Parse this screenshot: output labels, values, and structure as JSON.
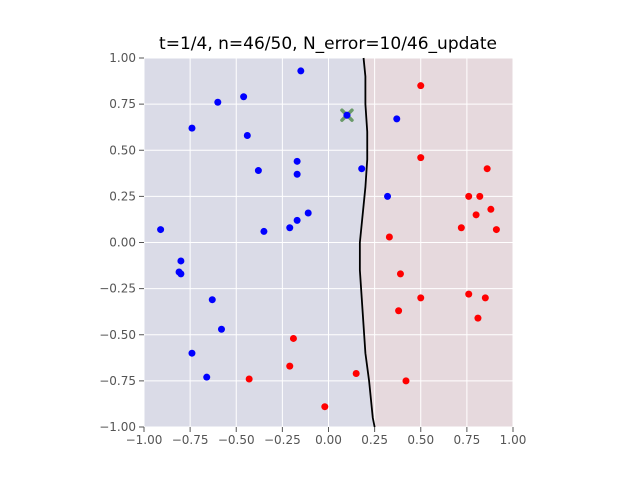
{
  "chart_data": {
    "type": "scatter",
    "title": "t=1/4, n=46/50, N_error=10/46_update",
    "xlabel": "",
    "ylabel": "",
    "xlim": [
      -1.0,
      1.0
    ],
    "ylim": [
      -1.0,
      1.0
    ],
    "xticks": [
      "−1.00",
      "−0.75",
      "−0.50",
      "−0.25",
      "0.00",
      "0.25",
      "0.50",
      "0.75",
      "1.00"
    ],
    "yticks": [
      "−1.00",
      "−0.75",
      "−0.50",
      "−0.25",
      "0.00",
      "0.25",
      "0.50",
      "0.75",
      "1.00"
    ],
    "grid": true,
    "legend": "none",
    "colors": {
      "blue_points": "#0000ff",
      "red_points": "#ff0000",
      "blue_region": "#dadbe7",
      "red_region": "#e6d9dd",
      "boundary": "#000000",
      "highlight_marker": "#6a9a6a",
      "grid": "#ffffff",
      "tick_text": "#555555"
    },
    "decision_regions": {
      "left_class": "blue",
      "right_class": "red"
    },
    "decision_boundary": [
      [
        0.19,
        1.0
      ],
      [
        0.2,
        0.9
      ],
      [
        0.2,
        0.75
      ],
      [
        0.21,
        0.6
      ],
      [
        0.21,
        0.45
      ],
      [
        0.2,
        0.3
      ],
      [
        0.19,
        0.2
      ],
      [
        0.18,
        0.1
      ],
      [
        0.17,
        0.0
      ],
      [
        0.17,
        -0.15
      ],
      [
        0.18,
        -0.3
      ],
      [
        0.19,
        -0.45
      ],
      [
        0.2,
        -0.6
      ],
      [
        0.22,
        -0.75
      ],
      [
        0.23,
        -0.85
      ],
      [
        0.24,
        -0.95
      ],
      [
        0.25,
        -1.0
      ]
    ],
    "series": [
      {
        "class": "blue",
        "points": [
          [
            -0.15,
            0.93
          ],
          [
            -0.46,
            0.79
          ],
          [
            -0.6,
            0.76
          ],
          [
            -0.74,
            0.62
          ],
          [
            -0.44,
            0.58
          ],
          [
            -0.38,
            0.39
          ],
          [
            -0.17,
            0.44
          ],
          [
            -0.17,
            0.37
          ],
          [
            -0.11,
            0.16
          ],
          [
            -0.17,
            0.12
          ],
          [
            -0.21,
            0.08
          ],
          [
            -0.35,
            0.06
          ],
          [
            -0.91,
            0.07
          ],
          [
            -0.8,
            -0.1
          ],
          [
            -0.81,
            -0.16
          ],
          [
            -0.8,
            -0.17
          ],
          [
            -0.63,
            -0.31
          ],
          [
            -0.58,
            -0.47
          ],
          [
            -0.74,
            -0.6
          ],
          [
            -0.66,
            -0.73
          ],
          [
            0.18,
            0.4
          ],
          [
            0.37,
            0.67
          ],
          [
            0.32,
            0.25
          ],
          [
            0.1,
            0.69
          ]
        ]
      },
      {
        "class": "red",
        "points": [
          [
            0.5,
            0.85
          ],
          [
            0.5,
            0.46
          ],
          [
            0.86,
            0.4
          ],
          [
            0.76,
            0.25
          ],
          [
            0.82,
            0.25
          ],
          [
            0.88,
            0.18
          ],
          [
            0.8,
            0.15
          ],
          [
            0.72,
            0.08
          ],
          [
            0.91,
            0.07
          ],
          [
            0.33,
            0.03
          ],
          [
            0.39,
            -0.17
          ],
          [
            0.5,
            -0.3
          ],
          [
            0.76,
            -0.28
          ],
          [
            0.85,
            -0.3
          ],
          [
            0.38,
            -0.37
          ],
          [
            0.81,
            -0.41
          ],
          [
            -0.19,
            -0.52
          ],
          [
            -0.21,
            -0.67
          ],
          [
            0.15,
            -0.71
          ],
          [
            -0.43,
            -0.74
          ],
          [
            0.42,
            -0.75
          ],
          [
            -0.02,
            -0.89
          ]
        ]
      }
    ],
    "highlight": {
      "point": [
        0.1,
        0.69
      ],
      "marker": "x"
    }
  }
}
